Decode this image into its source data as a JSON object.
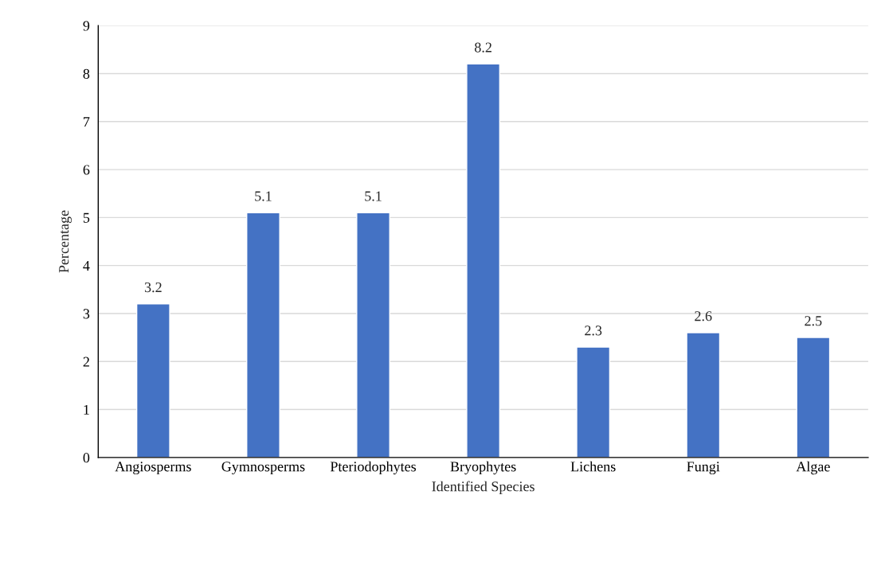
{
  "chart_data": {
    "type": "bar",
    "xlabel": "Identified Species",
    "ylabel": "Percentage",
    "categories": [
      "Angiosperms",
      "Gymnosperms",
      "Pteriodophytes",
      "Bryophytes",
      "Lichens",
      "Fungi",
      "Algae"
    ],
    "values": [
      3.2,
      5.1,
      5.1,
      8.2,
      2.3,
      2.6,
      2.5
    ],
    "color": "#4472c4",
    "ylim": [
      0,
      9
    ],
    "yticks": [
      0,
      1,
      2,
      3,
      4,
      5,
      6,
      7,
      8,
      9
    ],
    "grid": "y",
    "data_labels": true
  }
}
